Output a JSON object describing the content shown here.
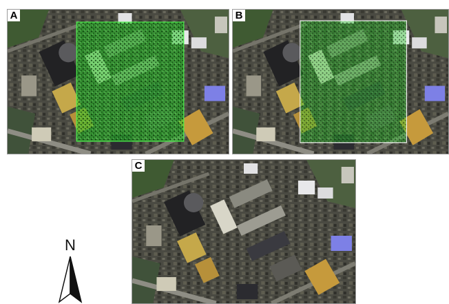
{
  "panels": [
    {
      "id": "A",
      "label": "A",
      "overlay": "green-classification-boundary"
    },
    {
      "id": "B",
      "label": "B",
      "overlay": "green-classification-boundary"
    },
    {
      "id": "C",
      "label": "C",
      "overlay": "none"
    }
  ],
  "north_arrow": {
    "letter": "N",
    "icon": "north-arrow-icon"
  },
  "colors": {
    "overlay_green": "#33e033",
    "boundary_white": "#f2f2f2"
  }
}
